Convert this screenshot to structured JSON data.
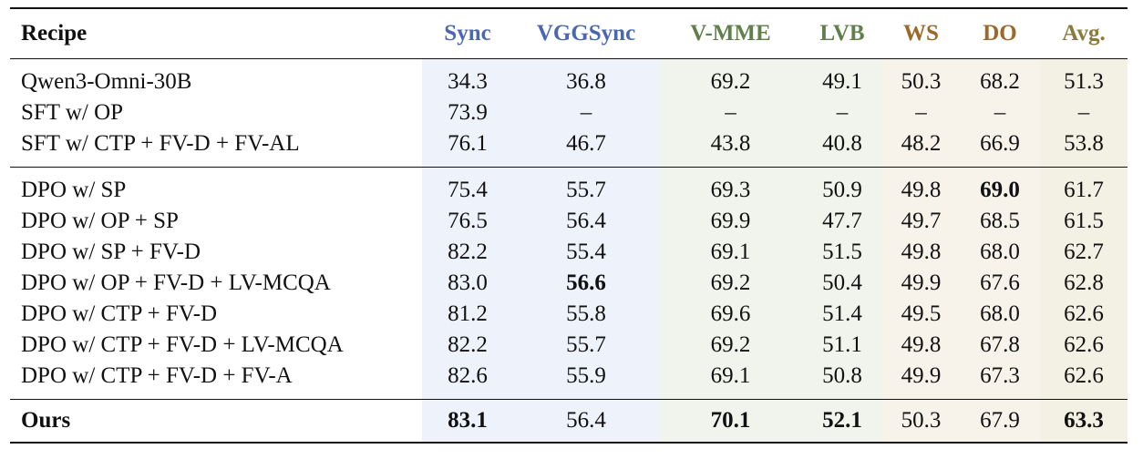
{
  "header": {
    "recipe": "Recipe",
    "columns": [
      {
        "label": "Sync",
        "color": "#4a67b0"
      },
      {
        "label": "VGGSync",
        "color": "#4a67b0"
      },
      {
        "label": "V-MME",
        "color": "#5f7f4b"
      },
      {
        "label": "LVB",
        "color": "#5f7f4b"
      },
      {
        "label": "WS",
        "color": "#9a6a2c"
      },
      {
        "label": "DO",
        "color": "#9a6a2c"
      },
      {
        "label": "Avg.",
        "color": "#8a7b3a"
      }
    ]
  },
  "groups": [
    {
      "rows": [
        {
          "recipe": "Qwen3-Omni-30B",
          "values": [
            "34.3",
            "36.8",
            "69.2",
            "49.1",
            "50.3",
            "68.2",
            "51.3"
          ]
        },
        {
          "recipe": "SFT w/ OP",
          "values": [
            "73.9",
            "–",
            "–",
            "–",
            "–",
            "–",
            "–"
          ]
        },
        {
          "recipe": "SFT w/ CTP + FV-D + FV-AL",
          "values": [
            "76.1",
            "46.7",
            "43.8",
            "40.8",
            "48.2",
            "66.9",
            "53.8"
          ]
        }
      ]
    },
    {
      "rows": [
        {
          "recipe": "DPO w/ SP",
          "values": [
            "75.4",
            "55.7",
            "69.3",
            "50.9",
            "49.8",
            "69.0",
            "61.7"
          ]
        },
        {
          "recipe": "DPO w/ OP + SP",
          "values": [
            "76.5",
            "56.4",
            "69.9",
            "47.7",
            "49.7",
            "68.5",
            "61.5"
          ]
        },
        {
          "recipe": "DPO w/ SP + FV-D",
          "values": [
            "82.2",
            "55.4",
            "69.1",
            "51.5",
            "49.8",
            "68.0",
            "62.7"
          ]
        },
        {
          "recipe": "DPO w/ OP + FV-D + LV-MCQA",
          "values": [
            "83.0",
            "56.6",
            "69.2",
            "50.4",
            "49.9",
            "67.6",
            "62.8"
          ]
        },
        {
          "recipe": "DPO w/ CTP + FV-D",
          "values": [
            "81.2",
            "55.8",
            "69.6",
            "51.4",
            "49.5",
            "68.0",
            "62.6"
          ]
        },
        {
          "recipe": "DPO w/ CTP + FV-D + LV-MCQA",
          "values": [
            "82.2",
            "55.7",
            "69.2",
            "51.1",
            "49.8",
            "67.8",
            "62.6"
          ]
        },
        {
          "recipe": "DPO w/ CTP + FV-D + FV-A",
          "values": [
            "82.6",
            "55.9",
            "69.1",
            "50.8",
            "49.9",
            "67.3",
            "62.6"
          ]
        }
      ]
    }
  ],
  "final": {
    "recipe": "Ours",
    "values": [
      "83.1",
      "56.4",
      "70.1",
      "52.1",
      "50.3",
      "67.9",
      "63.3"
    ]
  },
  "colors": {
    "sync_bg": "#eef2fb",
    "vmme_bg": "#f1f4ec",
    "ws_bg": "#f7f3ea",
    "avg_bg": "#f3f1e4"
  }
}
